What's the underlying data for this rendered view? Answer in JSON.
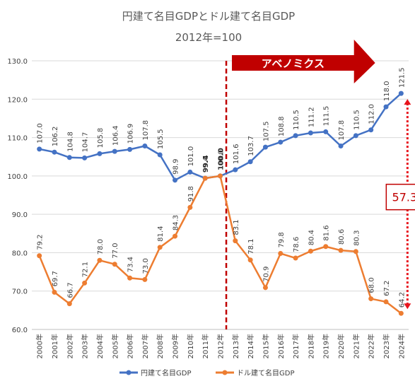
{
  "chart_data": {
    "type": "line",
    "title": "円建て名目GDPとドル建て名目GDP",
    "subtitle": "2012年=100",
    "categories": [
      "2000年",
      "2001年",
      "2002年",
      "2003年",
      "2004年",
      "2005年",
      "2006年",
      "2007年",
      "2008年",
      "2009年",
      "2010年",
      "2011年",
      "2012年",
      "2013年",
      "2014年",
      "2015年",
      "2016年",
      "2017年",
      "2018年",
      "2019年",
      "2020年",
      "2021年",
      "2022年",
      "2023年",
      "2024年"
    ],
    "ylim": [
      60,
      130
    ],
    "yticks": [
      "60.0",
      "70.0",
      "80.0",
      "90.0",
      "100.0",
      "110.0",
      "120.0",
      "130.0"
    ],
    "grid": true,
    "legend_position": "bottom",
    "series": [
      {
        "name": "円建て名目GDP",
        "color": "#4472c4",
        "values": [
          107.0,
          106.2,
          104.8,
          104.7,
          105.8,
          106.4,
          106.9,
          107.8,
          105.5,
          98.9,
          101.0,
          99.4,
          100.0,
          101.6,
          103.7,
          107.5,
          108.8,
          110.5,
          111.2,
          111.5,
          107.8,
          110.5,
          112.0,
          118.0,
          121.5
        ],
        "labels": [
          "107.0",
          "106.2",
          "104.8",
          "104.7",
          "105.8",
          "106.4",
          "106.9",
          "107.8",
          "105.5",
          "98.9",
          "101.0",
          "99.4",
          "100.0",
          "101.6",
          "103.7",
          "107.5",
          "108.8",
          "110.5",
          "111.2",
          "111.5",
          "107.8",
          "110.5",
          "112.0",
          "118.0",
          "121.5"
        ]
      },
      {
        "name": "ドル建て名目GDP",
        "color": "#ed7d31",
        "values": [
          79.2,
          69.7,
          66.7,
          72.1,
          78.0,
          77.0,
          73.4,
          73.0,
          81.4,
          84.3,
          91.8,
          99.4,
          100.0,
          83.1,
          78.1,
          70.9,
          79.8,
          78.6,
          80.4,
          81.6,
          80.6,
          80.3,
          68.0,
          67.2,
          64.2
        ],
        "labels": [
          "79.2",
          "69.7",
          "66.7",
          "72.1",
          "78.0",
          "77.0",
          "73.4",
          "73.0",
          "81.4",
          "84.3",
          "91.8",
          "99.4",
          "100.0",
          "83.1",
          "78.1",
          "70.9",
          "79.8",
          "78.6",
          "80.4",
          "81.6",
          "80.6",
          "80.3",
          "68.0",
          "67.2",
          "64.2"
        ]
      }
    ],
    "annotations": {
      "abenomics_label": "アベノミクス",
      "gap_label": "57.3",
      "divider_year": "2012年",
      "colors": {
        "banner": "#c00000",
        "divider": "#c00000"
      }
    }
  }
}
